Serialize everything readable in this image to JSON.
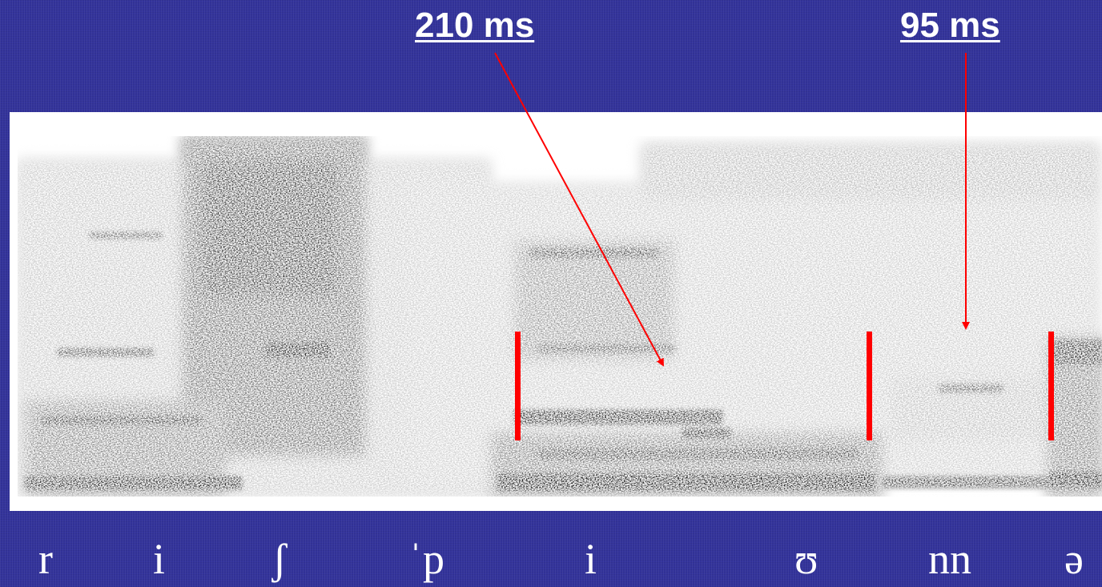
{
  "annotations": {
    "duration_1": "210 ms",
    "duration_2": "95 ms"
  },
  "transcription": [
    "r",
    "i",
    "ʃ",
    "ˈp",
    "i",
    "ʊ",
    "nn",
    "ə"
  ],
  "colors": {
    "background": "#33339a",
    "marker": "#ff0000",
    "text": "#ffffff"
  }
}
